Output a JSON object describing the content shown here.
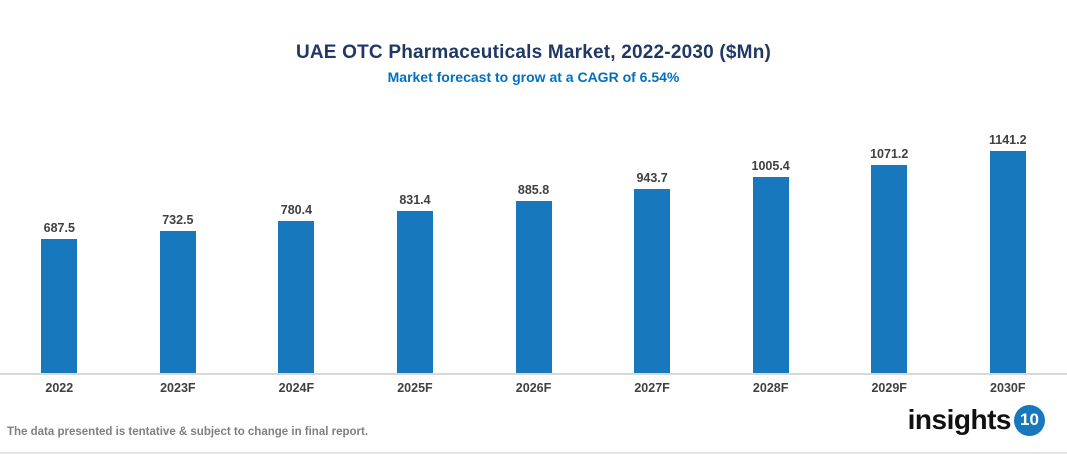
{
  "header": {
    "title": "UAE OTC Pharmaceuticals Market, 2022-2030 ($Mn)",
    "subtitle": "Market forecast to grow at a CAGR of 6.54%"
  },
  "chart_data": {
    "type": "bar",
    "categories": [
      "2022",
      "2023F",
      "2024F",
      "2025F",
      "2026F",
      "2027F",
      "2028F",
      "2029F",
      "2030F"
    ],
    "values": [
      687.5,
      732.5,
      780.4,
      831.4,
      885.8,
      943.7,
      1005.4,
      1071.2,
      1141.2
    ],
    "title": "UAE OTC Pharmaceuticals Market, 2022-2030 ($Mn)",
    "subtitle": "Market forecast to grow at a CAGR of 6.54%",
    "xlabel": "",
    "ylabel": "",
    "ylim": [
      0,
      1250
    ],
    "grid": false,
    "legend": "none",
    "data_labels": true,
    "bar_color": "#1878BE"
  },
  "colors": {
    "title": "#1F3864",
    "subtitle": "#0070C0",
    "bar": "#1878BE",
    "data_label": "#404040",
    "axis_label": "#404040",
    "axis_line": "#D9D9D9",
    "footer_text": "#808080",
    "logo_badge_bg": "#1878BE"
  },
  "footer": {
    "disclaimer": "The data presented is tentative & subject to change in final report.",
    "logo_text": "insights",
    "logo_badge": "10"
  }
}
